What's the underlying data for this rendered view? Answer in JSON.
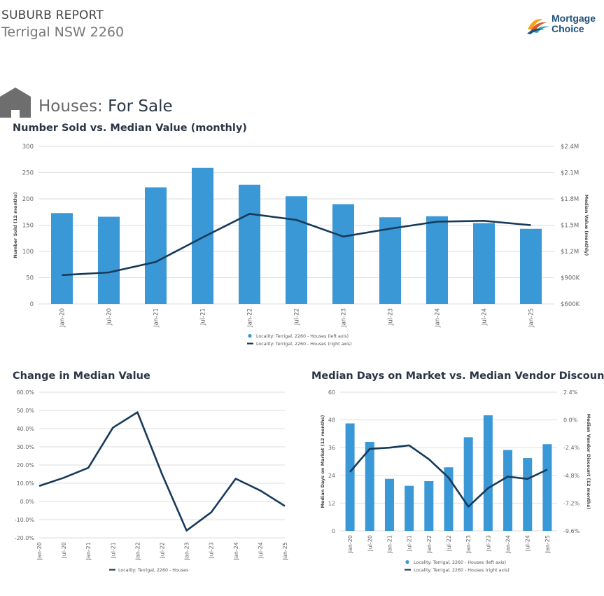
{
  "header": {
    "report_label": "SUBURB REPORT",
    "suburb": "Terrigal NSW 2260",
    "brand_line1": "Mortgage",
    "brand_line2": "Choice"
  },
  "section": {
    "title_prefix": "Houses:",
    "title_main": "For Sale",
    "icon": "house-icon"
  },
  "colors": {
    "bar": "#3a98d6",
    "line": "#173a5a",
    "grid": "#dddddd",
    "text": "#666666"
  },
  "chart_data": [
    {
      "type": "bar",
      "title": "Number Sold vs. Median Value (monthly)",
      "categories": [
        "Jan-20",
        "Jul-20",
        "Jan-21",
        "Jul-21",
        "Jan-22",
        "Jul-22",
        "Jan-23",
        "Jul-23",
        "Jan-24",
        "Jul-24",
        "Jan-25"
      ],
      "ylabel": "Number Sold (12 months)",
      "y2label": "Median Value (monthly)",
      "ylim": [
        0,
        300
      ],
      "yticks": [
        0,
        50,
        100,
        150,
        200,
        250,
        300
      ],
      "ytick_labels": [
        "0",
        "50",
        "100",
        "150",
        "200",
        "250",
        "300"
      ],
      "y2lim": [
        600000,
        2400000
      ],
      "y2ticks": [
        600000,
        900000,
        1200000,
        1500000,
        1800000,
        2100000,
        2400000
      ],
      "y2tick_labels": [
        "$600K",
        "$900K",
        "$1.2M",
        "$1.5M",
        "$1.8M",
        "$2.1M",
        "$2.4M"
      ],
      "series": [
        {
          "name": "Locality: Terrigal, 2260 - Houses (left axis)",
          "kind": "bar",
          "axis": "left",
          "values": [
            173,
            166,
            222,
            259,
            227,
            205,
            190,
            165,
            167,
            154,
            143
          ]
        },
        {
          "name": "Locality: Terrigal, 2260 - Houses (right axis)",
          "kind": "line",
          "axis": "right",
          "values": [
            930000,
            960000,
            1080000,
            1360000,
            1630000,
            1560000,
            1370000,
            1460000,
            1540000,
            1550000,
            1500000
          ]
        }
      ],
      "grid": true,
      "legend_position": "bottom-center"
    },
    {
      "type": "line",
      "title": "Change in Median Value",
      "categories": [
        "Jan-20",
        "Jul-20",
        "Jan-21",
        "Jul-21",
        "Jan-22",
        "Jul-22",
        "Jan-23",
        "Jul-23",
        "Jan-24",
        "Jul-24",
        "Jan-25"
      ],
      "ylim": [
        -20,
        60
      ],
      "yticks": [
        -20,
        -10,
        0,
        10,
        20,
        30,
        40,
        50,
        60
      ],
      "ytick_labels": [
        "-20.0%",
        "-10.0%",
        "0.0%",
        "10.0%",
        "20.0%",
        "30.0%",
        "40.0%",
        "50.0%",
        "60.0%"
      ],
      "series": [
        {
          "name": "Locality: Terrigal, 2260 - Houses",
          "values": [
            8.5,
            13,
            18.5,
            40.5,
            49,
            15,
            -16,
            -6,
            12.5,
            6,
            -2.5
          ]
        }
      ],
      "grid": true,
      "legend_position": "bottom-center"
    },
    {
      "type": "bar",
      "title": "Median Days on Market vs. Median Vendor Discount",
      "categories": [
        "Jan-20",
        "Jul-20",
        "Jan-21",
        "Jul-21",
        "Jan-22",
        "Jul-22",
        "Jan-23",
        "Jul-23",
        "Jan-24",
        "Jul-24",
        "Jan-25"
      ],
      "ylabel": "Median Days on Market (12 months)",
      "y2label": "Median Vendor Discount (12 months)",
      "ylim": [
        0,
        60
      ],
      "yticks": [
        0,
        12,
        24,
        36,
        48,
        60
      ],
      "ytick_labels": [
        "0",
        "12",
        "24",
        "36",
        "48",
        "60"
      ],
      "y2lim": [
        -9.6,
        2.4
      ],
      "y2ticks": [
        -9.6,
        -7.2,
        -4.8,
        -2.4,
        0,
        2.4
      ],
      "y2tick_labels": [
        "-9.6%",
        "-7.2%",
        "-4.8%",
        "-2.4%",
        "0.0%",
        "2.4%"
      ],
      "series": [
        {
          "name": "Locality: Terrigal, 2260 - Houses (left axis)",
          "kind": "bar",
          "axis": "left",
          "values": [
            46.5,
            38.5,
            22.5,
            19.5,
            21.5,
            27.5,
            40.5,
            50,
            35,
            31.5,
            37.5
          ]
        },
        {
          "name": "Locality: Terrigal, 2260 - Houses (right axis)",
          "kind": "line",
          "axis": "right",
          "values": [
            -4.5,
            -2.5,
            -2.4,
            -2.2,
            -3.4,
            -5.0,
            -7.5,
            -5.9,
            -4.9,
            -5.1,
            -4.3
          ]
        }
      ],
      "grid": true,
      "legend_position": "bottom-center"
    }
  ]
}
